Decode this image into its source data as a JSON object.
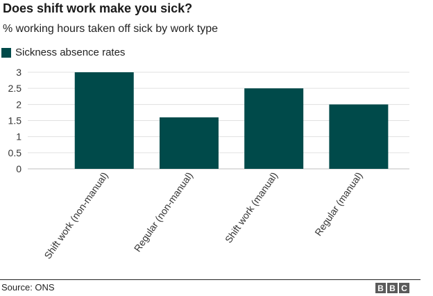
{
  "header": {
    "title": "Does shift work make you sick?",
    "subtitle": "% working hours taken off sick by work type"
  },
  "legend": {
    "label": "Sickness absence rates"
  },
  "footer": {
    "source": "Source: ONS",
    "logo": [
      "B",
      "B",
      "C"
    ]
  },
  "colors": {
    "bar": "#004a4a",
    "grid": "#e0e0e0",
    "axis": "#bfbfbf"
  },
  "chart_data": {
    "type": "bar",
    "title": "Does shift work make you sick?",
    "subtitle": "% working hours taken off sick by work type",
    "categories": [
      "Shift work (non-manual)",
      "Regular (non-manual)",
      "Shift work (manual)",
      "Regular (manual)"
    ],
    "series": [
      {
        "name": "Sickness absence rates",
        "values": [
          3.0,
          1.6,
          2.5,
          2.0
        ]
      }
    ],
    "yticks": [
      "0",
      "0.5",
      "1",
      "1.5",
      "2",
      "2.5",
      "3"
    ],
    "ylim": [
      0,
      3
    ],
    "grid": true,
    "legend_position": "top-left"
  }
}
